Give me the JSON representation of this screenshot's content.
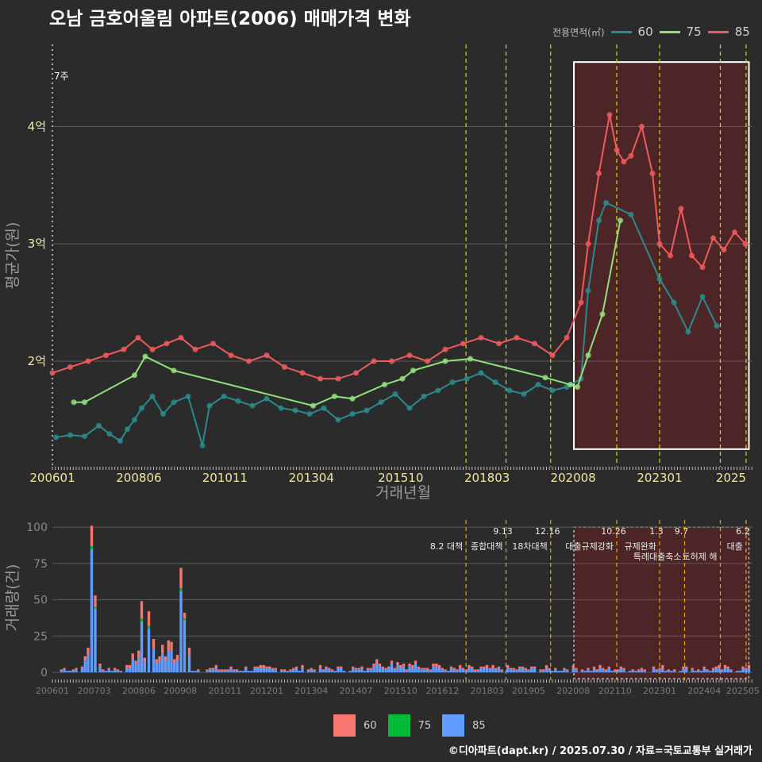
{
  "header": {
    "title": "오남 금호어울림 아파트(2006) 매매가격 변화",
    "legend_title": "전용면적(㎡)",
    "legend_items": [
      {
        "label": "60",
        "color": "#2a8a8c"
      },
      {
        "label": "75",
        "color": "#8fe07a"
      },
      {
        "label": "85",
        "color": "#f05a5a"
      }
    ]
  },
  "footer": {
    "credit": "©디아파트(dapt.kr) / 2025.07.30 / 자료=국토교통부 실거래가"
  },
  "bottom_legend": [
    {
      "label": "60",
      "color": "#f8766d"
    },
    {
      "label": "75",
      "color": "#00ba38"
    },
    {
      "label": "85",
      "color": "#619cff"
    }
  ],
  "chart_data": [
    {
      "type": "line",
      "title": "오남 금호어울림 아파트(2006) 매매가격 변화",
      "xlabel": "거래년월",
      "ylabel": "평균가(원)",
      "xlim": [
        2006.0,
        2025.6
      ],
      "ylim": [
        1.1,
        4.7
      ],
      "x_ticks": [
        "200601",
        "200806",
        "201011",
        "201304",
        "201510",
        "201803",
        "202008",
        "202301",
        "2025"
      ],
      "x_tick_values": [
        2006.0,
        2008.42,
        2010.83,
        2013.25,
        2015.75,
        2018.17,
        2020.58,
        2023.0,
        2025.0
      ],
      "y_ticks": [
        "2억",
        "3억",
        "4억"
      ],
      "y_tick_values": [
        2,
        3,
        4
      ],
      "annotation": "7주",
      "policy_lines": [
        2017.58,
        2018.7,
        2019.95,
        2021.8,
        2023.0,
        2024.7,
        2025.42
      ],
      "highlight_range": [
        2020.6,
        2025.5
      ],
      "highlight_y": [
        1.25,
        4.55
      ],
      "series": [
        {
          "name": "60",
          "color": "#2a8a8c",
          "x": [
            2006.1,
            2006.5,
            2006.9,
            2007.3,
            2007.6,
            2007.9,
            2008.1,
            2008.3,
            2008.5,
            2008.8,
            2009.1,
            2009.4,
            2009.8,
            2010.2,
            2010.4,
            2010.8,
            2011.2,
            2011.6,
            2012.0,
            2012.4,
            2012.8,
            2013.2,
            2013.6,
            2014.0,
            2014.4,
            2014.8,
            2015.2,
            2015.6,
            2016.0,
            2016.4,
            2016.8,
            2017.2,
            2017.6,
            2018.0,
            2018.4,
            2018.8,
            2019.2,
            2019.6,
            2020.0,
            2020.4,
            2020.8,
            2021.0,
            2021.3,
            2021.5,
            2022.2,
            2023.0,
            2023.4,
            2023.8,
            2024.2,
            2024.6
          ],
          "y": [
            1.35,
            1.37,
            1.36,
            1.45,
            1.38,
            1.32,
            1.42,
            1.5,
            1.6,
            1.7,
            1.55,
            1.65,
            1.7,
            1.28,
            1.62,
            1.7,
            1.66,
            1.62,
            1.68,
            1.6,
            1.58,
            1.55,
            1.6,
            1.5,
            1.55,
            1.58,
            1.65,
            1.72,
            1.6,
            1.7,
            1.75,
            1.82,
            1.85,
            1.9,
            1.82,
            1.75,
            1.72,
            1.8,
            1.75,
            1.78,
            1.85,
            2.6,
            3.2,
            3.35,
            3.25,
            2.7,
            2.5,
            2.25,
            2.55,
            2.3
          ]
        },
        {
          "name": "75",
          "color": "#8fe07a",
          "x": [
            2006.6,
            2006.9,
            2008.3,
            2008.6,
            2009.4,
            2013.3,
            2013.9,
            2014.4,
            2015.3,
            2015.8,
            2016.1,
            2017.0,
            2017.7,
            2019.8,
            2020.5,
            2020.7,
            2021.0,
            2021.4,
            2021.9
          ],
          "y": [
            1.65,
            1.65,
            1.88,
            2.04,
            1.92,
            1.62,
            1.7,
            1.68,
            1.8,
            1.85,
            1.92,
            2.0,
            2.02,
            1.86,
            1.8,
            1.78,
            2.05,
            2.4,
            3.2
          ]
        },
        {
          "name": "85",
          "color": "#f05a5a",
          "x": [
            2006.0,
            2006.5,
            2007.0,
            2007.5,
            2008.0,
            2008.4,
            2008.8,
            2009.2,
            2009.6,
            2010.0,
            2010.5,
            2011.0,
            2011.5,
            2012.0,
            2012.5,
            2013.0,
            2013.5,
            2014.0,
            2014.5,
            2015.0,
            2015.5,
            2016.0,
            2016.5,
            2017.0,
            2017.5,
            2018.0,
            2018.5,
            2019.0,
            2019.5,
            2020.0,
            2020.4,
            2020.8,
            2021.0,
            2021.3,
            2021.6,
            2021.8,
            2022.0,
            2022.2,
            2022.5,
            2022.8,
            2023.0,
            2023.3,
            2023.6,
            2023.9,
            2024.2,
            2024.5,
            2024.8,
            2025.1,
            2025.4
          ],
          "y": [
            1.9,
            1.95,
            2.0,
            2.05,
            2.1,
            2.2,
            2.1,
            2.15,
            2.2,
            2.1,
            2.15,
            2.05,
            2.0,
            2.05,
            1.95,
            1.9,
            1.85,
            1.85,
            1.9,
            2.0,
            2.0,
            2.05,
            2.0,
            2.1,
            2.15,
            2.2,
            2.15,
            2.2,
            2.15,
            2.05,
            2.2,
            2.5,
            3.0,
            3.6,
            4.1,
            3.8,
            3.7,
            3.75,
            4.0,
            3.6,
            3.0,
            2.9,
            3.3,
            2.9,
            2.8,
            3.05,
            2.95,
            3.1,
            3.0
          ]
        }
      ]
    },
    {
      "type": "bar",
      "stacked": true,
      "xlabel": "",
      "ylabel": "거래량(건)",
      "ylim": [
        0,
        105
      ],
      "y_ticks": [
        "0",
        "25",
        "50",
        "75",
        "100"
      ],
      "y_tick_values": [
        0,
        25,
        50,
        75,
        100
      ],
      "x_ticks": [
        "200601",
        "200703",
        "200806",
        "200908",
        "201011",
        "201201",
        "201304",
        "201407",
        "201510",
        "201612",
        "201803",
        "201905",
        "202008",
        "202110",
        "202301",
        "202404",
        "202505"
      ],
      "x_tick_values": [
        2006.0,
        2007.17,
        2008.42,
        2009.58,
        2010.83,
        2012.0,
        2013.25,
        2014.5,
        2015.75,
        2016.92,
        2018.17,
        2019.33,
        2020.58,
        2021.75,
        2023.0,
        2024.25,
        2025.33
      ],
      "events": [
        {
          "x": 2017.58,
          "date": "",
          "label": "8.2 대책"
        },
        {
          "x": 2018.7,
          "date": "9.13",
          "label": "종합대책"
        },
        {
          "x": 2019.95,
          "date": "12.16",
          "label": "18차대책"
        },
        {
          "x": 2021.8,
          "date": "10.26",
          "label": "대출규제강화"
        },
        {
          "x": 2023.0,
          "date": "1.3",
          "label": "규제완화"
        },
        {
          "x": 2023.7,
          "date": "9.7",
          "label": "특례대출축소"
        },
        {
          "x": 2024.7,
          "date": "",
          "label": "토허제 해"
        },
        {
          "x": 2025.42,
          "date": "6.2",
          "label": "대출"
        }
      ],
      "series": [
        {
          "name": "60",
          "color": "#f8766d"
        },
        {
          "name": "75",
          "color": "#00ba38"
        },
        {
          "name": "85",
          "color": "#619cff"
        }
      ],
      "peaks": [
        {
          "x": 2007.1,
          "values": [
            14,
            2,
            85
          ]
        },
        {
          "x": 2007.2,
          "values": [
            8,
            1,
            44
          ]
        },
        {
          "x": 2008.5,
          "values": [
            12,
            2,
            35
          ]
        },
        {
          "x": 2008.7,
          "values": [
            10,
            2,
            30
          ]
        },
        {
          "x": 2009.6,
          "values": [
            14,
            2,
            56
          ]
        },
        {
          "x": 2009.7,
          "values": [
            4,
            1,
            36
          ]
        }
      ],
      "baseline": [
        2,
        0,
        4
      ]
    }
  ]
}
